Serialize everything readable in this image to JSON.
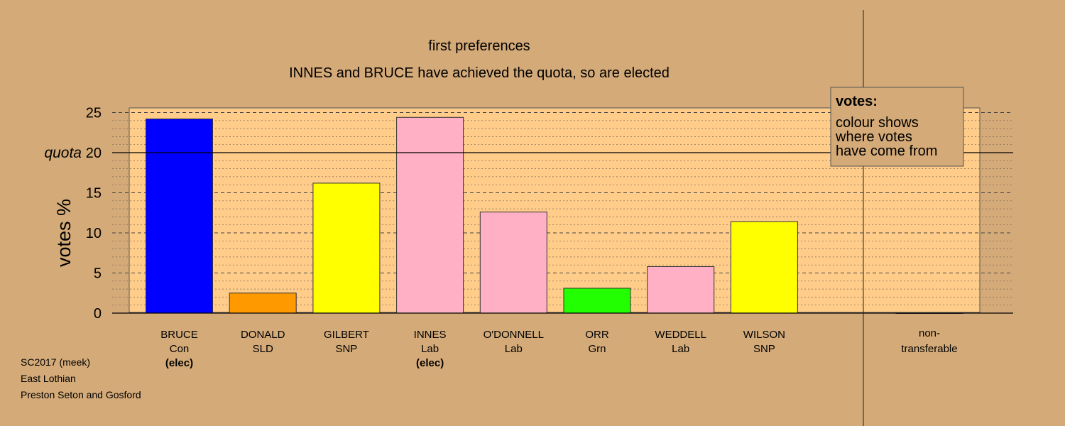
{
  "chart_data": {
    "type": "bar",
    "title": "first preferences",
    "subtitle": "INNES and BRUCE have achieved the quota, so are elected",
    "ylabel": "votes %",
    "ylim": [
      0,
      25
    ],
    "yticks": [
      0,
      5,
      10,
      15,
      20,
      25
    ],
    "quota_value": 20,
    "quota_label": "quota",
    "grid": true,
    "categories": [
      {
        "name": "BRUCE",
        "party": "Con",
        "status": "(elec)",
        "value": 24.2,
        "color": "#0000FF"
      },
      {
        "name": "DONALD",
        "party": "SLD",
        "status": "",
        "value": 2.5,
        "color": "#FF9900"
      },
      {
        "name": "GILBERT",
        "party": "SNP",
        "status": "",
        "value": 16.2,
        "color": "#FFFF00"
      },
      {
        "name": "INNES",
        "party": "Lab",
        "status": "(elec)",
        "value": 24.4,
        "color": "#FFB0C4"
      },
      {
        "name": "O'DONNELL",
        "party": "Lab",
        "status": "",
        "value": 12.6,
        "color": "#FFB0C4"
      },
      {
        "name": "ORR",
        "party": "Grn",
        "status": "",
        "value": 3.1,
        "color": "#22FF00"
      },
      {
        "name": "WEDDELL",
        "party": "Lab",
        "status": "",
        "value": 5.8,
        "color": "#FFB0C4"
      },
      {
        "name": "WILSON",
        "party": "SNP",
        "status": "",
        "value": 11.4,
        "color": "#FFFF00"
      }
    ],
    "non_transferable": {
      "label_line1": "non-",
      "label_line2": "transferable",
      "value": 0
    },
    "legend": {
      "placement": "top-right",
      "title": "votes:",
      "lines": [
        "colour shows",
        "where votes",
        "have come from"
      ]
    }
  },
  "footer": {
    "election": "SC2017 (meek)",
    "council": "East Lothian",
    "ward": "Preston Seton and Gosford"
  },
  "colors": {
    "background": "#D4AA78",
    "plot_area": "#FFCC8A"
  }
}
